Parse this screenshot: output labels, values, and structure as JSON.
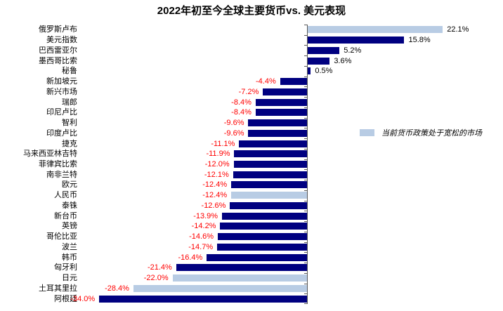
{
  "chart_data": {
    "type": "bar",
    "orientation": "horizontal",
    "title": "2022年初至今全球主要货币vs. 美元表现",
    "categories": [
      "俄罗斯卢布",
      "美元指数",
      "巴西雷亚尔",
      "墨西哥比索",
      "秘鲁",
      "新加坡元",
      "新兴市场",
      "瑞郎",
      "印尼卢比",
      "智利",
      "印度卢比",
      "捷克",
      "马来西亚林吉特",
      "菲律宾比索",
      "南非兰特",
      "欧元",
      "人民币",
      "泰铢",
      "新台币",
      "英镑",
      "哥伦比亚",
      "波兰",
      "韩币",
      "匈牙利",
      "日元",
      "土耳其里拉",
      "阿根廷"
    ],
    "values": [
      22.1,
      15.8,
      5.2,
      3.6,
      0.5,
      -4.4,
      -7.2,
      -8.4,
      -8.4,
      -9.6,
      -9.6,
      -11.1,
      -11.9,
      -12.0,
      -12.1,
      -12.4,
      -12.4,
      -12.6,
      -13.9,
      -14.2,
      -14.6,
      -14.7,
      -16.4,
      -21.4,
      -22.0,
      -28.4,
      -34.0
    ],
    "value_labels": [
      "22.1%",
      "15.8%",
      "5.2%",
      "3.6%",
      "0.5%",
      "-4.4%",
      "-7.2%",
      "-8.4%",
      "-8.4%",
      "-9.6%",
      "-9.6%",
      "-11.1%",
      "-11.9%",
      "-12.0%",
      "-12.1%",
      "-12.4%",
      "-12.4%",
      "-12.6%",
      "-13.9%",
      "-14.2%",
      "-14.6%",
      "-14.7%",
      "-16.4%",
      "-21.4%",
      "-22.0%",
      "-28.4%",
      "-34.0%"
    ],
    "highlighted_indices": [
      0,
      16,
      24,
      25
    ],
    "xlim": [
      -34,
      23
    ],
    "grid": false,
    "colors": {
      "bar": "#000080",
      "bar_highlight": "#B8CCE4",
      "positive_label": "#000000",
      "negative_label": "#FF0000",
      "axis": "#595959"
    },
    "legend": {
      "label": "当前货币政策处于宽松的市场",
      "swatch_color": "#B8CCE4",
      "position": "right-middle"
    }
  }
}
